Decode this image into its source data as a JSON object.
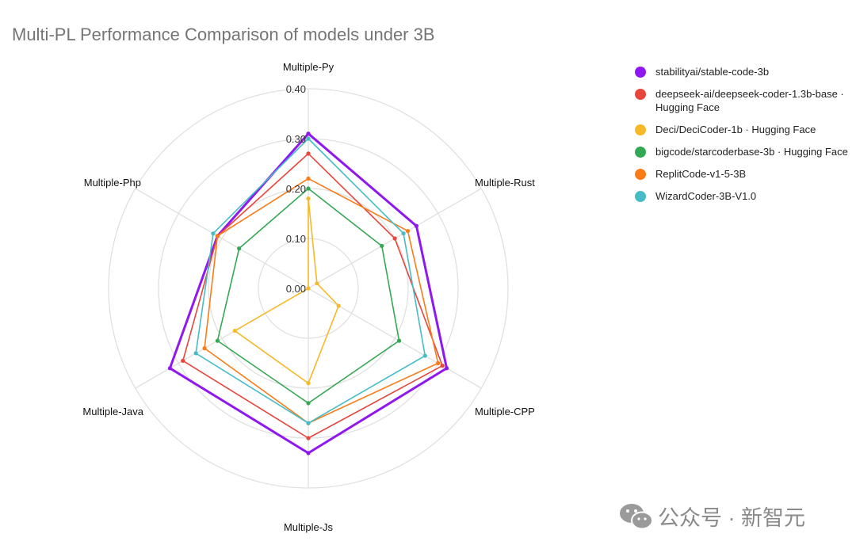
{
  "chart_data": {
    "type": "radar",
    "title": "Multi-PL Performance Comparison of models under 3B",
    "axes": [
      "Multiple-Py",
      "Multiple-Rust",
      "Multiple-CPP",
      "Multiple-Js",
      "Multiple-Java",
      "Multiple-Php"
    ],
    "rlim": [
      0,
      0.4
    ],
    "ticks": [
      "0.00",
      "0.10",
      "0.20",
      "0.30",
      "0.40"
    ],
    "grid": true,
    "legend_position": "right",
    "series": [
      {
        "name": "stabilityai/stable-code-3b",
        "color": "#8f18f0",
        "values": [
          0.31,
          0.25,
          0.32,
          0.33,
          0.32,
          0.21
        ]
      },
      {
        "name": "deepseek-ai/deepseek-coder-1.3b-base · Hugging Face",
        "color": "#e8453c",
        "values": [
          0.27,
          0.2,
          0.31,
          0.3,
          0.29,
          0.21
        ]
      },
      {
        "name": "Deci/DeciCoder-1b · Hugging Face",
        "color": "#f7b928",
        "values": [
          0.18,
          0.02,
          0.07,
          0.19,
          0.17,
          0.0
        ]
      },
      {
        "name": "bigcode/starcoderbase-3b · Hugging Face",
        "color": "#34a853",
        "values": [
          0.2,
          0.17,
          0.21,
          0.23,
          0.21,
          0.16
        ]
      },
      {
        "name": "ReplitCode-v1-5-3B",
        "color": "#fa7b17",
        "values": [
          0.22,
          0.23,
          0.3,
          0.27,
          0.24,
          0.21
        ]
      },
      {
        "name": "WizardCoder-3B-V1.0",
        "color": "#46bdc6",
        "values": [
          0.3,
          0.22,
          0.27,
          0.27,
          0.26,
          0.22
        ]
      }
    ]
  },
  "watermark": {
    "text": "公众号 · 新智元"
  }
}
